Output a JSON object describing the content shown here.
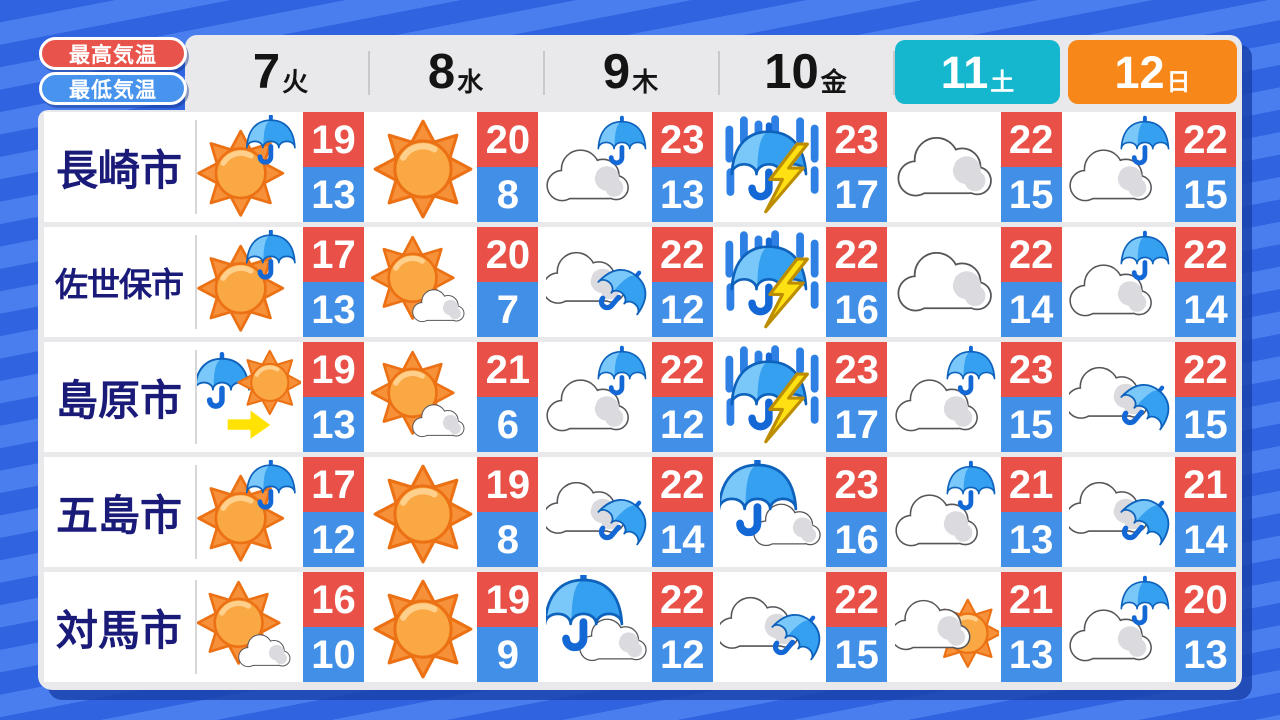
{
  "legend": {
    "high_label": "最高気温",
    "low_label": "最低気温"
  },
  "colors": {
    "high_temp_bg": "#E85048",
    "low_temp_bg": "#428FE8",
    "saturday_bg": "#15B7CE",
    "sunday_bg": "#F68718",
    "panel_bg": "#E9E9EB",
    "city_text": "#1A1A78",
    "background_stripe_dark": "#2F63DF",
    "background_stripe_light": "#4A7EEF"
  },
  "days": [
    {
      "date": "7",
      "dow": "火",
      "style": "weekday"
    },
    {
      "date": "8",
      "dow": "水",
      "style": "weekday"
    },
    {
      "date": "9",
      "dow": "木",
      "style": "weekday"
    },
    {
      "date": "10",
      "dow": "金",
      "style": "weekday"
    },
    {
      "date": "11",
      "dow": "土",
      "style": "saturday"
    },
    {
      "date": "12",
      "dow": "日",
      "style": "sunday"
    }
  ],
  "rows": [
    {
      "city": "長崎市",
      "days": [
        {
          "icon": "sun-umbrella",
          "high": "19",
          "low": "13"
        },
        {
          "icon": "sun",
          "high": "20",
          "low": "8"
        },
        {
          "icon": "cloud-umbrella",
          "high": "23",
          "low": "13"
        },
        {
          "icon": "rain-thunder",
          "high": "23",
          "low": "17"
        },
        {
          "icon": "cloud",
          "high": "22",
          "low": "15"
        },
        {
          "icon": "cloud-umbrella",
          "high": "22",
          "low": "15"
        }
      ]
    },
    {
      "city": "佐世保市",
      "days": [
        {
          "icon": "sun-umbrella",
          "high": "17",
          "low": "13"
        },
        {
          "icon": "sun-cloud",
          "high": "20",
          "low": "7"
        },
        {
          "icon": "cloud-umbrella-tilt",
          "high": "22",
          "low": "12"
        },
        {
          "icon": "rain-thunder",
          "high": "22",
          "low": "16"
        },
        {
          "icon": "cloud",
          "high": "22",
          "low": "14"
        },
        {
          "icon": "cloud-umbrella",
          "high": "22",
          "low": "14"
        }
      ]
    },
    {
      "city": "島原市",
      "days": [
        {
          "icon": "umbrella-arrow-sun",
          "high": "19",
          "low": "13"
        },
        {
          "icon": "sun-cloud",
          "high": "21",
          "low": "6"
        },
        {
          "icon": "cloud-umbrella",
          "high": "22",
          "low": "12"
        },
        {
          "icon": "rain-thunder",
          "high": "23",
          "low": "17"
        },
        {
          "icon": "cloud-umbrella",
          "high": "23",
          "low": "15"
        },
        {
          "icon": "cloud-umbrella-tilt",
          "high": "22",
          "low": "15"
        }
      ]
    },
    {
      "city": "五島市",
      "days": [
        {
          "icon": "sun-umbrella",
          "high": "17",
          "low": "12"
        },
        {
          "icon": "sun",
          "high": "19",
          "low": "8"
        },
        {
          "icon": "cloud-umbrella-tilt",
          "high": "22",
          "low": "14"
        },
        {
          "icon": "umbrella-cloud",
          "high": "23",
          "low": "16"
        },
        {
          "icon": "cloud-umbrella",
          "high": "21",
          "low": "13"
        },
        {
          "icon": "cloud-umbrella-tilt",
          "high": "21",
          "low": "14"
        }
      ]
    },
    {
      "city": "対馬市",
      "days": [
        {
          "icon": "sun-cloud",
          "high": "16",
          "low": "10"
        },
        {
          "icon": "sun",
          "high": "19",
          "low": "9"
        },
        {
          "icon": "umbrella-cloud",
          "high": "22",
          "low": "12"
        },
        {
          "icon": "cloud-umbrella-tilt",
          "high": "22",
          "low": "15"
        },
        {
          "icon": "cloud-sun",
          "high": "21",
          "low": "13"
        },
        {
          "icon": "cloud-umbrella",
          "high": "20",
          "low": "13"
        }
      ]
    }
  ]
}
